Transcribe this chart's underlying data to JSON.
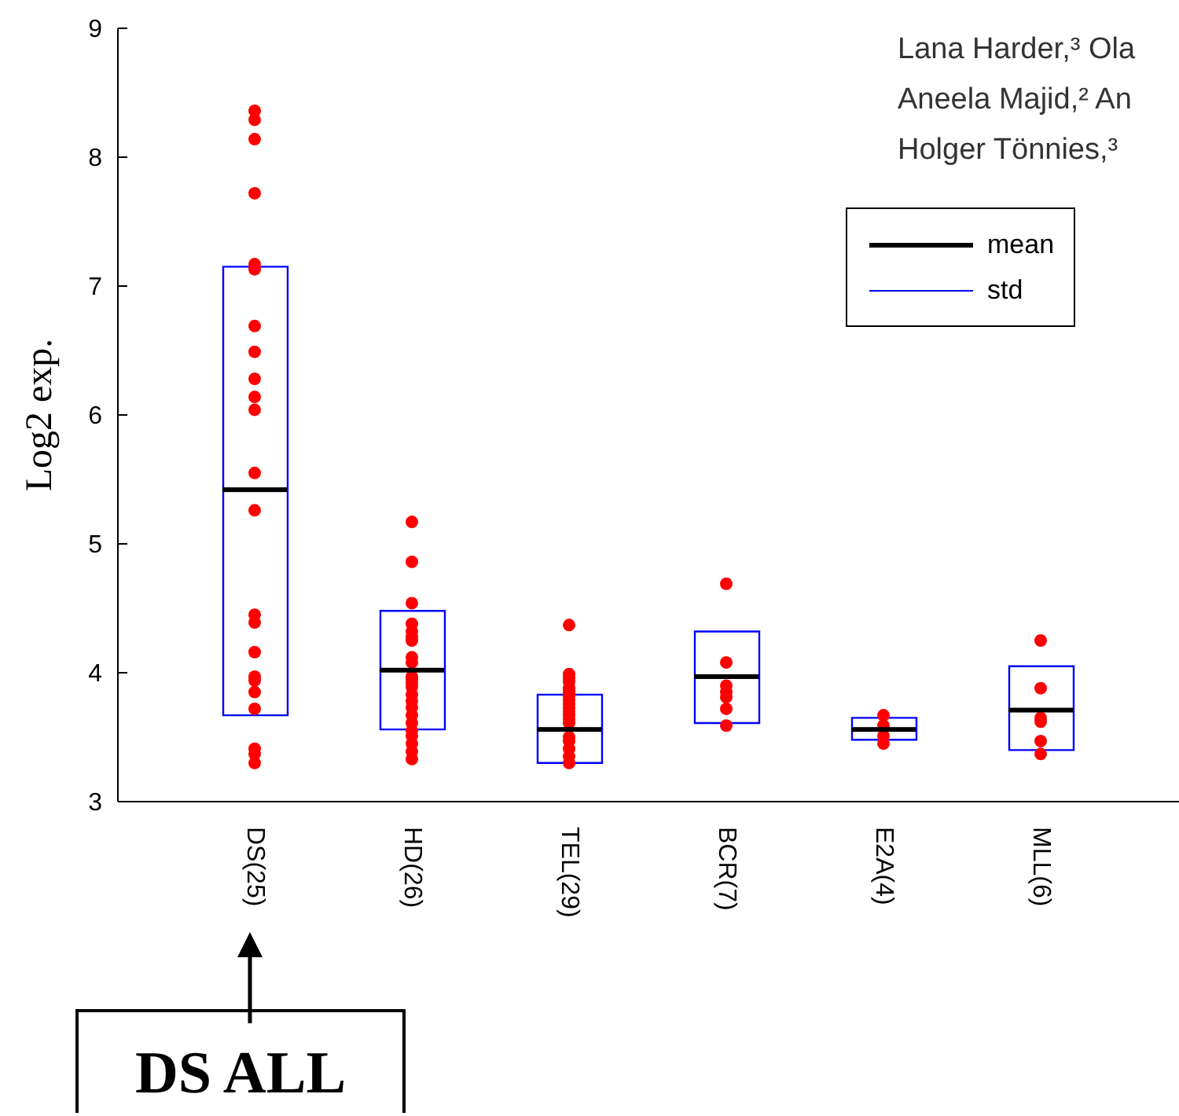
{
  "chart_data": {
    "type": "scatter",
    "ylabel": "Log2 exp.",
    "categories": [
      "DS(25)",
      "HD(26)",
      "TEL(29)",
      "BCR(7)",
      "E2A(4)",
      "MLL(6)"
    ],
    "ylim": [
      3,
      9
    ],
    "yticks": [
      3,
      4,
      5,
      6,
      7,
      8,
      9
    ],
    "legend": "top right",
    "marker": "circle",
    "series": [
      {
        "name": "std",
        "type": "bar",
        "color": "#0000ff",
        "base": [
          3.67,
          3.56,
          3.3,
          3.61,
          3.48,
          3.4
        ],
        "values": [
          3.48,
          0.92,
          0.53,
          0.71,
          0.17,
          0.65
        ]
      },
      {
        "color": "#ff0000",
        "x": [
          "DS(25)",
          "DS(25)",
          "DS(25)",
          "DS(25)",
          "DS(25)",
          "DS(25)",
          "DS(25)",
          "DS(25)",
          "DS(25)",
          "DS(25)",
          "DS(25)",
          "DS(25)",
          "DS(25)",
          "DS(25)",
          "DS(25)",
          "DS(25)",
          "DS(25)",
          "DS(25)",
          "DS(25)",
          "DS(25)",
          "DS(25)",
          "DS(25)",
          "DS(25)",
          "HD(26)",
          "HD(26)",
          "HD(26)",
          "HD(26)",
          "HD(26)",
          "HD(26)",
          "HD(26)",
          "HD(26)",
          "HD(26)",
          "HD(26)",
          "HD(26)",
          "HD(26)",
          "HD(26)",
          "HD(26)",
          "HD(26)",
          "HD(26)",
          "HD(26)",
          "HD(26)",
          "HD(26)",
          "HD(26)",
          "HD(26)",
          "HD(26)",
          "HD(26)",
          "TEL(29)",
          "TEL(29)",
          "TEL(29)",
          "TEL(29)",
          "TEL(29)",
          "TEL(29)",
          "TEL(29)",
          "TEL(29)",
          "TEL(29)",
          "TEL(29)",
          "TEL(29)",
          "TEL(29)",
          "TEL(29)",
          "TEL(29)",
          "TEL(29)",
          "TEL(29)",
          "TEL(29)",
          "TEL(29)",
          "TEL(29)",
          "BCR(7)",
          "BCR(7)",
          "BCR(7)",
          "BCR(7)",
          "BCR(7)",
          "BCR(7)",
          "BCR(7)",
          "E2A(4)",
          "E2A(4)",
          "E2A(4)",
          "E2A(4)",
          "MLL(6)",
          "MLL(6)",
          "MLL(6)",
          "MLL(6)",
          "MLL(6)",
          "MLL(6)"
        ],
        "values": [
          8.36,
          8.29,
          8.14,
          7.72,
          7.17,
          7.13,
          6.69,
          6.49,
          6.28,
          6.14,
          6.04,
          5.55,
          5.26,
          4.45,
          4.39,
          4.16,
          3.97,
          3.94,
          3.85,
          3.72,
          3.41,
          3.37,
          3.3,
          5.17,
          4.86,
          4.54,
          4.38,
          4.32,
          4.28,
          4.25,
          4.12,
          4.08,
          3.97,
          3.95,
          3.92,
          3.89,
          3.83,
          3.78,
          3.73,
          3.67,
          3.61,
          3.55,
          3.51,
          3.45,
          3.39,
          3.33,
          4.37,
          3.99,
          3.96,
          3.93,
          3.88,
          3.85,
          3.82,
          3.79,
          3.76,
          3.73,
          3.7,
          3.67,
          3.64,
          3.61,
          3.5,
          3.47,
          3.41,
          3.35,
          3.3,
          4.69,
          4.08,
          3.9,
          3.85,
          3.81,
          3.72,
          3.59,
          3.67,
          3.59,
          3.51,
          3.45,
          4.25,
          3.88,
          3.65,
          3.62,
          3.47,
          3.37
        ]
      },
      {
        "name": "mean",
        "type": "box",
        "color": "#000000",
        "boxes": [
          {
            "low": 5.42,
            "q1": 5.42,
            "median": 5.42,
            "q3": 5.42,
            "high": 5.42
          },
          {
            "low": 4.02,
            "q1": 4.02,
            "median": 4.02,
            "q3": 4.02,
            "high": 4.02
          },
          {
            "low": 3.56,
            "q1": 3.56,
            "median": 3.56,
            "q3": 3.56,
            "high": 3.56
          },
          {
            "low": 3.97,
            "q1": 3.97,
            "median": 3.97,
            "q3": 3.97,
            "high": 3.97
          },
          {
            "low": 3.56,
            "q1": 3.56,
            "median": 3.56,
            "q3": 3.56,
            "high": 3.56
          },
          {
            "low": 3.71,
            "q1": 3.71,
            "median": 3.71,
            "q3": 3.71,
            "high": 3.71
          }
        ]
      }
    ],
    "annotations": [
      "Lana Harder,³ Ola",
      "Aneela Majid,² An",
      "Holger Tönnies,³",
      "DS ALL"
    ]
  }
}
